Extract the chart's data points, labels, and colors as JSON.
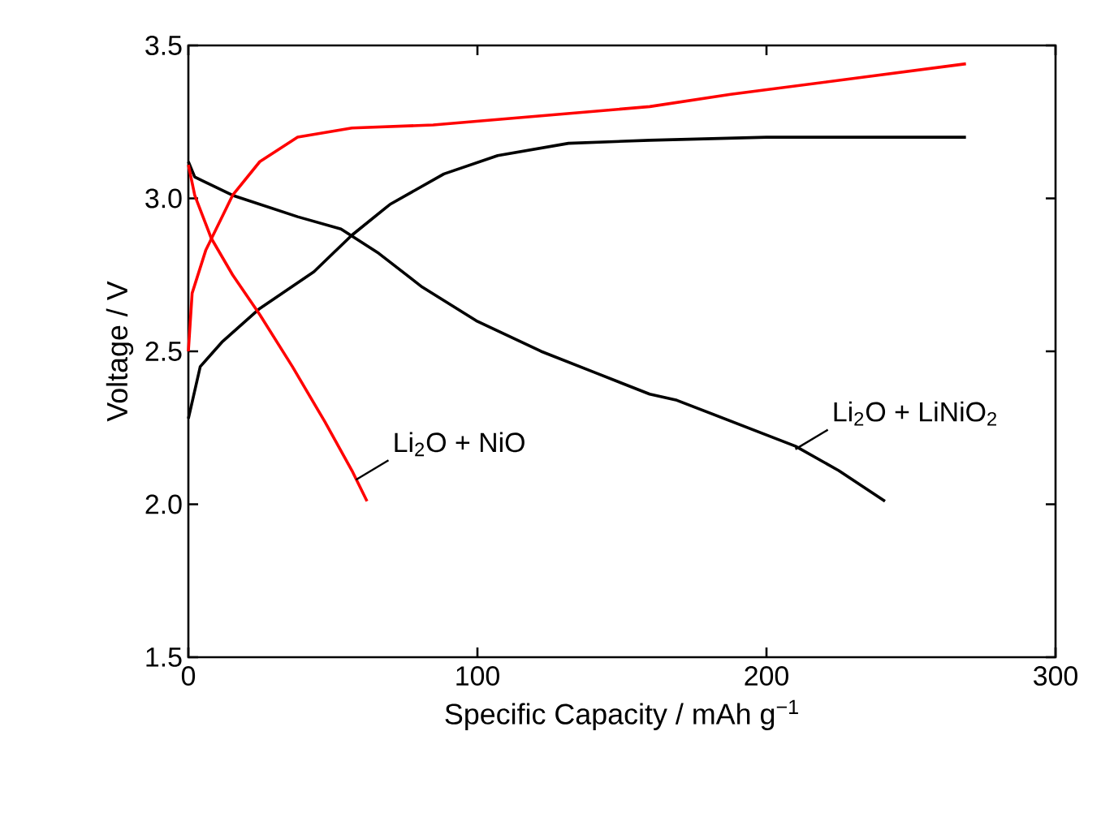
{
  "chart_data": {
    "type": "line",
    "xlabel": "Specific Capacity / mAh g$^{−1}$",
    "ylabel": "Voltage / V",
    "xlim": [
      0,
      300
    ],
    "ylim": [
      1.5,
      3.5
    ],
    "xticks": [
      0,
      100,
      200,
      300
    ],
    "yticks": [
      {
        "value": 1.5,
        "label": "1.5"
      },
      {
        "value": 2.0,
        "label": "2.0"
      },
      {
        "value": 2.5,
        "label": "2.5"
      },
      {
        "value": 3.0,
        "label": "3.0"
      },
      {
        "value": 3.5,
        "label": "3.5"
      }
    ],
    "series": [
      {
        "color": "#000000",
        "x": [
          0,
          2.2,
          15.3,
          37.8,
          52.8,
          65.9,
          80.9,
          99.6,
          122,
          140.8,
          159.6,
          169,
          210,
          225,
          241
        ],
        "values": [
          3.12,
          3.07,
          3.01,
          2.94,
          2.9,
          2.82,
          2.71,
          2.6,
          2.5,
          2.43,
          2.36,
          2.34,
          2.19,
          2.11,
          2.01
        ]
      },
      {
        "color": "#000000",
        "x": [
          0,
          4.1,
          11.6,
          24.7,
          43.4,
          56.6,
          69.7,
          88.4,
          107,
          131.5,
          159.6,
          200,
          269
        ],
        "values": [
          2.28,
          2.45,
          2.53,
          2.64,
          2.76,
          2.88,
          2.98,
          3.08,
          3.14,
          3.18,
          3.19,
          3.2,
          3.2
        ]
      },
      {
        "color": "#ff0000",
        "x": [
          0,
          1.3,
          6,
          15.3,
          24.7,
          37.8,
          56.6,
          84.7,
          122,
          159.6,
          187.6,
          269
        ],
        "values": [
          2.5,
          2.69,
          2.83,
          3.01,
          3.12,
          3.2,
          3.23,
          3.24,
          3.27,
          3.3,
          3.34,
          3.44
        ]
      },
      {
        "color": "#ff0000",
        "x": [
          0,
          2.2,
          7.9,
          15.3,
          24.7,
          36,
          47.2,
          56.6,
          61.8
        ],
        "values": [
          3.11,
          3.01,
          2.87,
          2.75,
          2.62,
          2.45,
          2.27,
          2.11,
          2.01
        ]
      }
    ],
    "annotations": [
      {
        "text": "Li$_{2}$O + NiO",
        "x": 58,
        "y": 2.08
      },
      {
        "text": "Li$_{2}$O + LiNiO$_{2}$",
        "x": 210,
        "y": 2.18
      }
    ]
  }
}
